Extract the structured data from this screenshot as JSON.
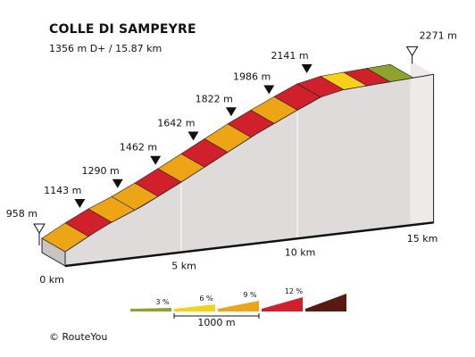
{
  "header": {
    "title": "COLLE DI SAMPEYRE",
    "subtitle": "1356 m D+ / 15.87 km"
  },
  "footer": {
    "copyright": "©  RouteYou"
  },
  "colors": {
    "g3": "#8ea32e",
    "g6": "#f7d018",
    "g9": "#eda417",
    "g12": "#d0202b",
    "g15": "#5a1a14",
    "side": "#eeeaea",
    "front": "#dfdbdb",
    "marker": "#111111"
  },
  "chart_data": {
    "type": "area",
    "title": "COLLE DI SAMPEYRE",
    "subtitle": "1356 m D+ / 15.87 km",
    "x_unit": "km",
    "x_ticks": [
      "0 km",
      "5 km",
      "10 km",
      "15 km"
    ],
    "x_tick_values": [
      0,
      5,
      10,
      15
    ],
    "distance_km": 15.87,
    "elevation_gain_m": 1356,
    "waypoints": [
      {
        "km": 0,
        "label": "958 m",
        "elevation": 958,
        "marker": "open"
      },
      {
        "km": 1.63,
        "label": "1143 m",
        "elevation": 1143,
        "marker": "filled"
      },
      {
        "km": 3.26,
        "label": "1290 m",
        "elevation": 1290,
        "marker": "filled"
      },
      {
        "km": 4.89,
        "label": "1462 m",
        "elevation": 1462,
        "marker": "filled"
      },
      {
        "km": 6.52,
        "label": "1642 m",
        "elevation": 1642,
        "marker": "filled"
      },
      {
        "km": 8.15,
        "label": "1822 m",
        "elevation": 1822,
        "marker": "filled"
      },
      {
        "km": 9.78,
        "label": "1986 m",
        "elevation": 1986,
        "marker": "filled"
      },
      {
        "km": 11.41,
        "label": "2141 m",
        "elevation": 2141,
        "marker": "filled"
      },
      {
        "km": 15.87,
        "label": "2271 m",
        "elevation": 2271,
        "marker": "open"
      }
    ],
    "segments": [
      {
        "start_km": 0.0,
        "end_km": 1.0,
        "grade": "9"
      },
      {
        "start_km": 1.0,
        "end_km": 2.0,
        "grade": "12"
      },
      {
        "start_km": 2.0,
        "end_km": 3.0,
        "grade": "9"
      },
      {
        "start_km": 3.0,
        "end_km": 4.0,
        "grade": "9"
      },
      {
        "start_km": 4.0,
        "end_km": 5.0,
        "grade": "12"
      },
      {
        "start_km": 5.0,
        "end_km": 6.0,
        "grade": "9"
      },
      {
        "start_km": 6.0,
        "end_km": 7.0,
        "grade": "12"
      },
      {
        "start_km": 7.0,
        "end_km": 8.0,
        "grade": "9"
      },
      {
        "start_km": 8.0,
        "end_km": 9.0,
        "grade": "12"
      },
      {
        "start_km": 9.0,
        "end_km": 10.0,
        "grade": "9"
      },
      {
        "start_km": 10.0,
        "end_km": 11.0,
        "grade": "12"
      },
      {
        "start_km": 11.0,
        "end_km": 12.0,
        "grade": "12"
      },
      {
        "start_km": 12.0,
        "end_km": 13.0,
        "grade": "6"
      },
      {
        "start_km": 13.0,
        "end_km": 14.0,
        "grade": "12"
      },
      {
        "start_km": 14.0,
        "end_km": 15.0,
        "grade": "3"
      }
    ],
    "legend": {
      "items": [
        {
          "label": "3 %",
          "grade": "3"
        },
        {
          "label": "6 %",
          "grade": "6"
        },
        {
          "label": "9 %",
          "grade": "9"
        },
        {
          "label": "12 %",
          "grade": "12"
        },
        {
          "label": "",
          "grade": "15"
        }
      ],
      "scale_label": "1000 m"
    }
  }
}
